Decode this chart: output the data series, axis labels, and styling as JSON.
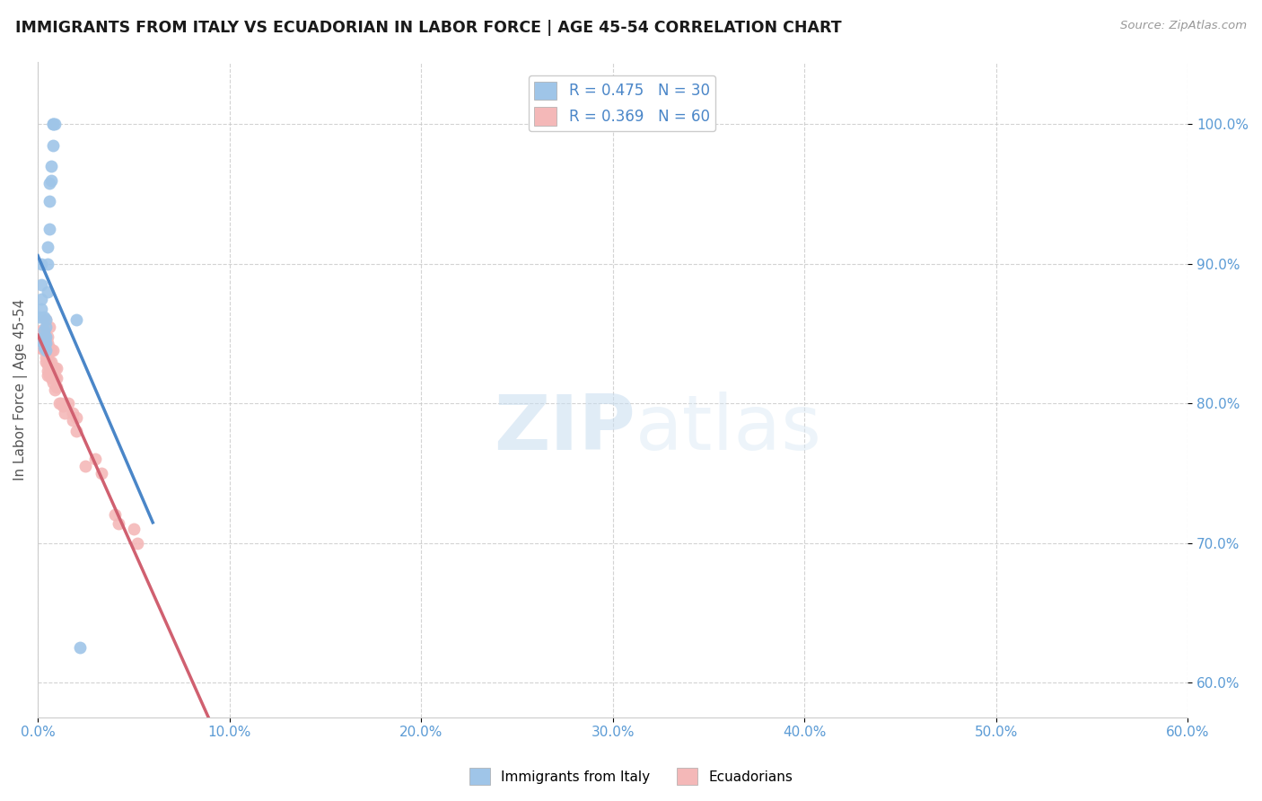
{
  "title": "IMMIGRANTS FROM ITALY VS ECUADORIAN IN LABOR FORCE | AGE 45-54 CORRELATION CHART",
  "source": "Source: ZipAtlas.com",
  "ylabel_label": "In Labor Force | Age 45-54",
  "x_tick_labels": [
    "0.0%",
    "10.0%",
    "20.0%",
    "30.0%",
    "40.0%",
    "50.0%",
    "60.0%"
  ],
  "y_tick_labels": [
    "60.0%",
    "70.0%",
    "80.0%",
    "90.0%",
    "100.0%"
  ],
  "italy_R": 0.475,
  "italy_N": 30,
  "ecuador_R": 0.369,
  "ecuador_N": 60,
  "italy_color": "#9fc5e8",
  "ecuador_color": "#f4b8b8",
  "italy_line_color": "#4a86c8",
  "ecuador_line_color": "#d06070",
  "legend_italy_label": "Immigrants from Italy",
  "legend_ecuador_label": "Ecuadorians",
  "watermark_zip": "ZIP",
  "watermark_atlas": "atlas",
  "italy_x": [
    0.001,
    0.001,
    0.002,
    0.002,
    0.002,
    0.002,
    0.003,
    0.003,
    0.003,
    0.003,
    0.003,
    0.004,
    0.004,
    0.004,
    0.004,
    0.004,
    0.005,
    0.005,
    0.005,
    0.006,
    0.006,
    0.006,
    0.007,
    0.007,
    0.008,
    0.008,
    0.008,
    0.009,
    0.02,
    0.022
  ],
  "italy_y": [
    0.845,
    0.862,
    0.868,
    0.875,
    0.885,
    0.9,
    0.84,
    0.843,
    0.848,
    0.852,
    0.862,
    0.838,
    0.843,
    0.848,
    0.855,
    0.86,
    0.88,
    0.9,
    0.912,
    0.925,
    0.945,
    0.958,
    0.96,
    0.97,
    0.985,
    1.0,
    1.0,
    1.0,
    0.86,
    0.625
  ],
  "ecuador_x": [
    0.001,
    0.001,
    0.001,
    0.002,
    0.002,
    0.002,
    0.002,
    0.002,
    0.003,
    0.003,
    0.003,
    0.003,
    0.003,
    0.004,
    0.004,
    0.004,
    0.004,
    0.004,
    0.004,
    0.005,
    0.005,
    0.005,
    0.005,
    0.005,
    0.005,
    0.006,
    0.006,
    0.006,
    0.006,
    0.006,
    0.007,
    0.007,
    0.007,
    0.007,
    0.008,
    0.008,
    0.008,
    0.008,
    0.009,
    0.009,
    0.009,
    0.01,
    0.01,
    0.01,
    0.011,
    0.012,
    0.013,
    0.014,
    0.016,
    0.018,
    0.018,
    0.02,
    0.02,
    0.025,
    0.03,
    0.033,
    0.04,
    0.042,
    0.05,
    0.052
  ],
  "ecuador_y": [
    0.84,
    0.843,
    0.848,
    0.84,
    0.843,
    0.845,
    0.848,
    0.852,
    0.838,
    0.84,
    0.843,
    0.845,
    0.848,
    0.83,
    0.833,
    0.838,
    0.843,
    0.845,
    0.86,
    0.82,
    0.823,
    0.828,
    0.833,
    0.843,
    0.848,
    0.82,
    0.823,
    0.83,
    0.84,
    0.855,
    0.818,
    0.825,
    0.83,
    0.838,
    0.815,
    0.82,
    0.825,
    0.838,
    0.81,
    0.818,
    0.825,
    0.812,
    0.818,
    0.825,
    0.8,
    0.8,
    0.798,
    0.793,
    0.8,
    0.788,
    0.793,
    0.78,
    0.79,
    0.755,
    0.76,
    0.75,
    0.72,
    0.714,
    0.71,
    0.7
  ],
  "xlim": [
    0.0,
    0.6
  ],
  "ylim": [
    0.575,
    1.045
  ],
  "xticks": [
    0.0,
    0.1,
    0.2,
    0.3,
    0.4,
    0.5,
    0.6
  ],
  "yticks": [
    0.6,
    0.7,
    0.8,
    0.9,
    1.0
  ]
}
